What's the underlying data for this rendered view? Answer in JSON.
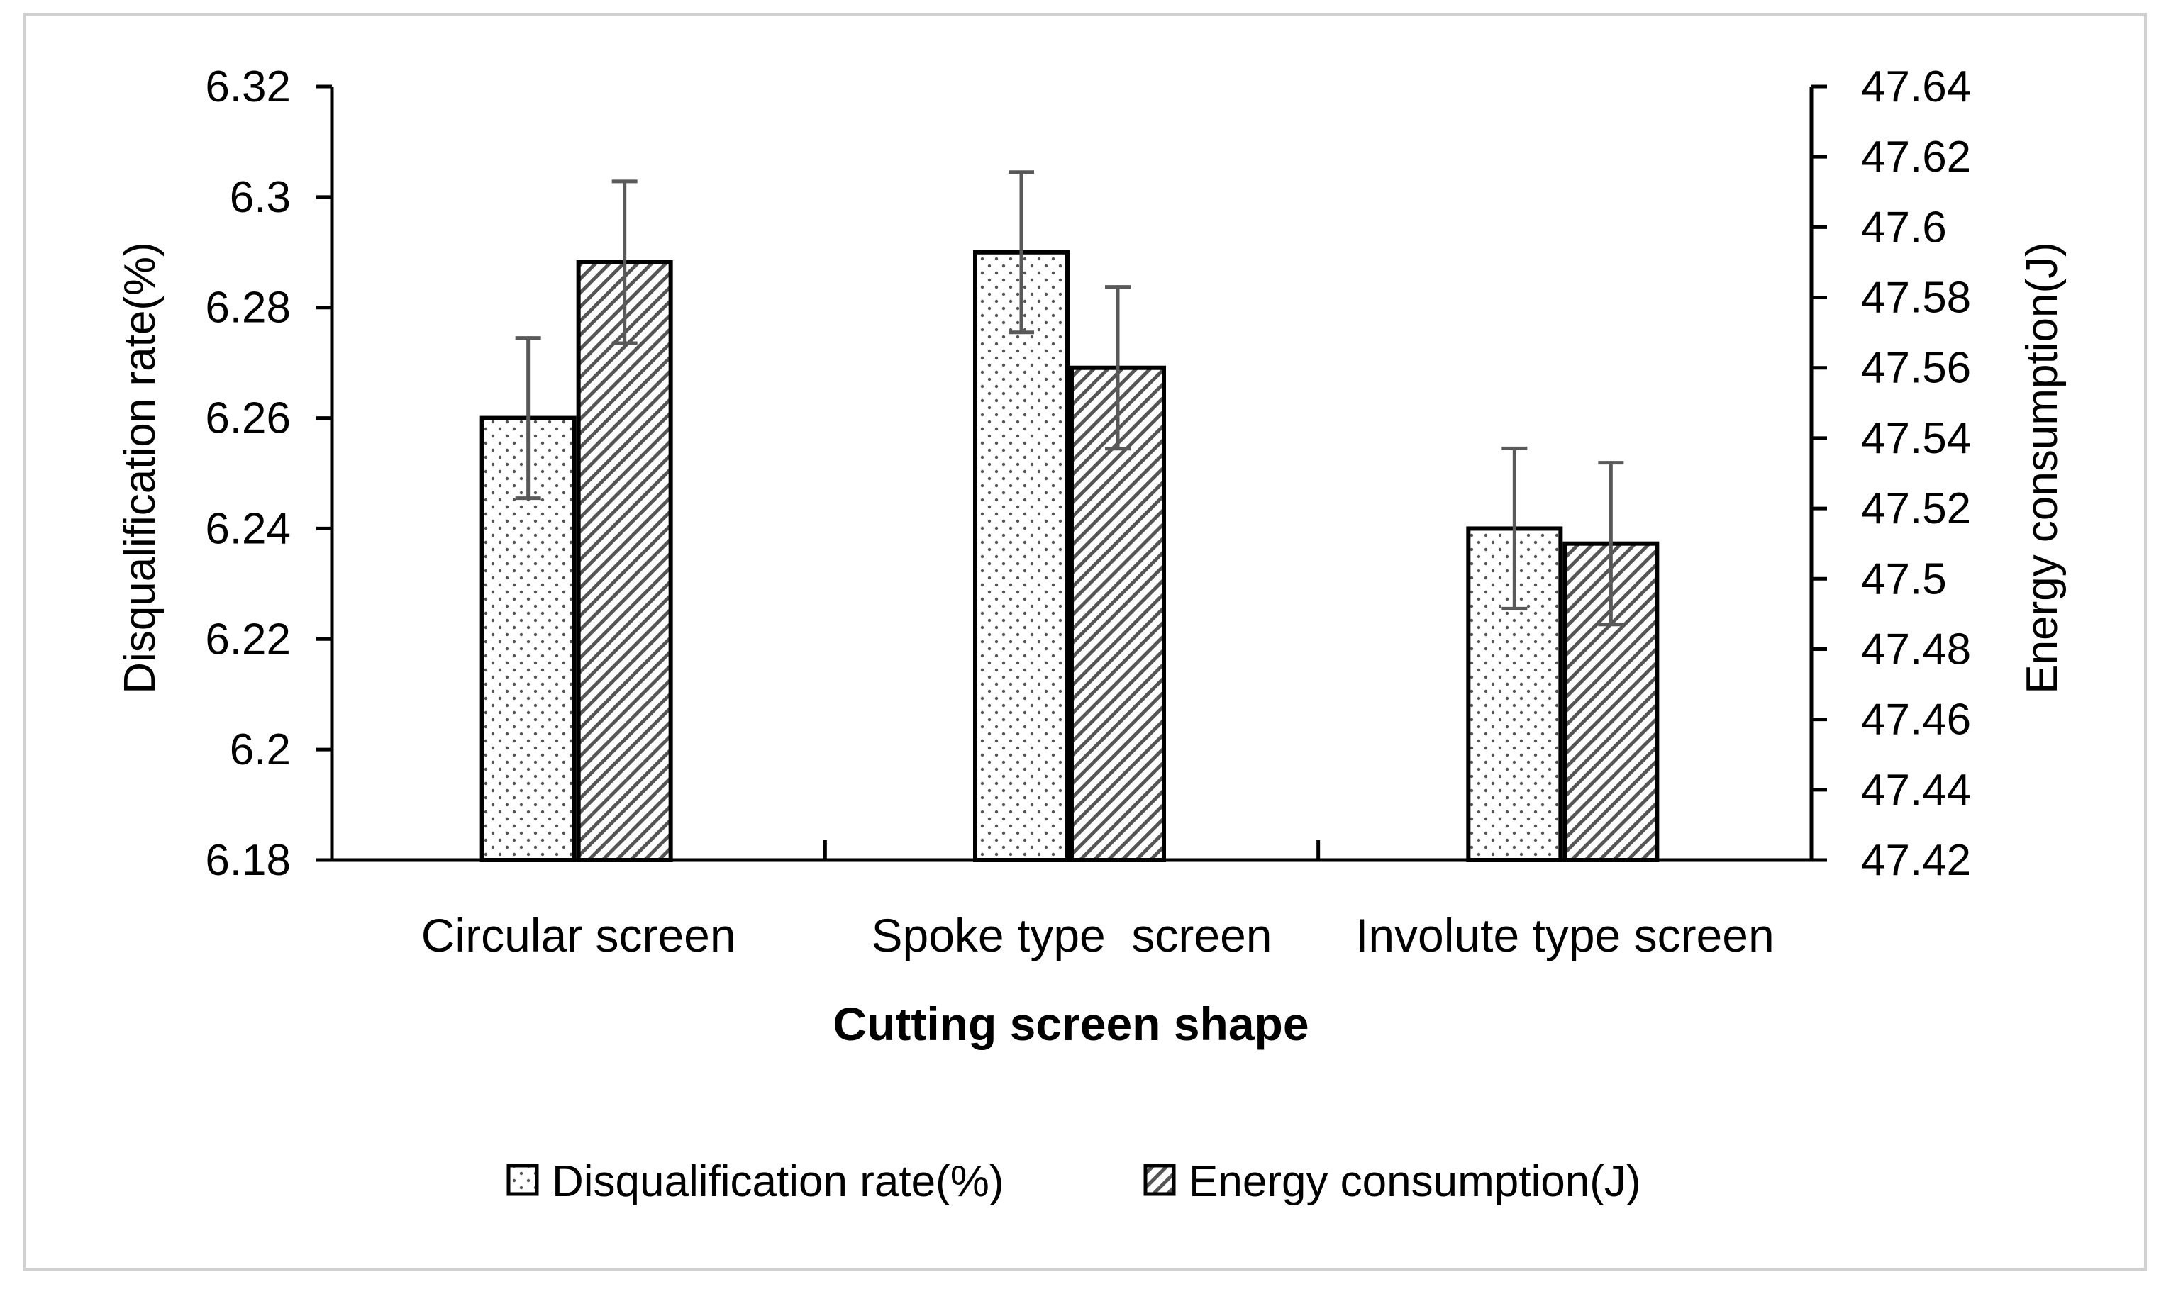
{
  "chart_data": {
    "type": "bar",
    "title": "",
    "xlabel": "Cutting screen shape",
    "ylabel": "Disqualification rate(%)",
    "y2label": "Energy consumption(J)",
    "categories": [
      "Circular screen",
      "Spoke type  screen",
      "Involute type screen"
    ],
    "ylim": [
      6.18,
      6.32
    ],
    "y2lim": [
      47.42,
      47.64
    ],
    "yticks": [
      6.18,
      6.2,
      6.22,
      6.24,
      6.26,
      6.28,
      6.3,
      6.32
    ],
    "y2ticks": [
      47.42,
      47.44,
      47.46,
      47.48,
      47.5,
      47.52,
      47.54,
      47.56,
      47.58,
      47.6,
      47.62,
      47.64
    ],
    "series": [
      {
        "name": "Disqualification rate(%)",
        "axis": "left",
        "pattern": "dots",
        "values": [
          6.26,
          6.29,
          6.24
        ],
        "errors": [
          0.0145,
          0.0145,
          0.0145
        ]
      },
      {
        "name": "Energy consumption(J)",
        "axis": "right",
        "pattern": "hatch",
        "values": [
          47.59,
          47.56,
          47.51
        ],
        "errors": [
          0.023,
          0.023,
          0.023
        ]
      }
    ],
    "legend": "bottom",
    "grid": false
  }
}
